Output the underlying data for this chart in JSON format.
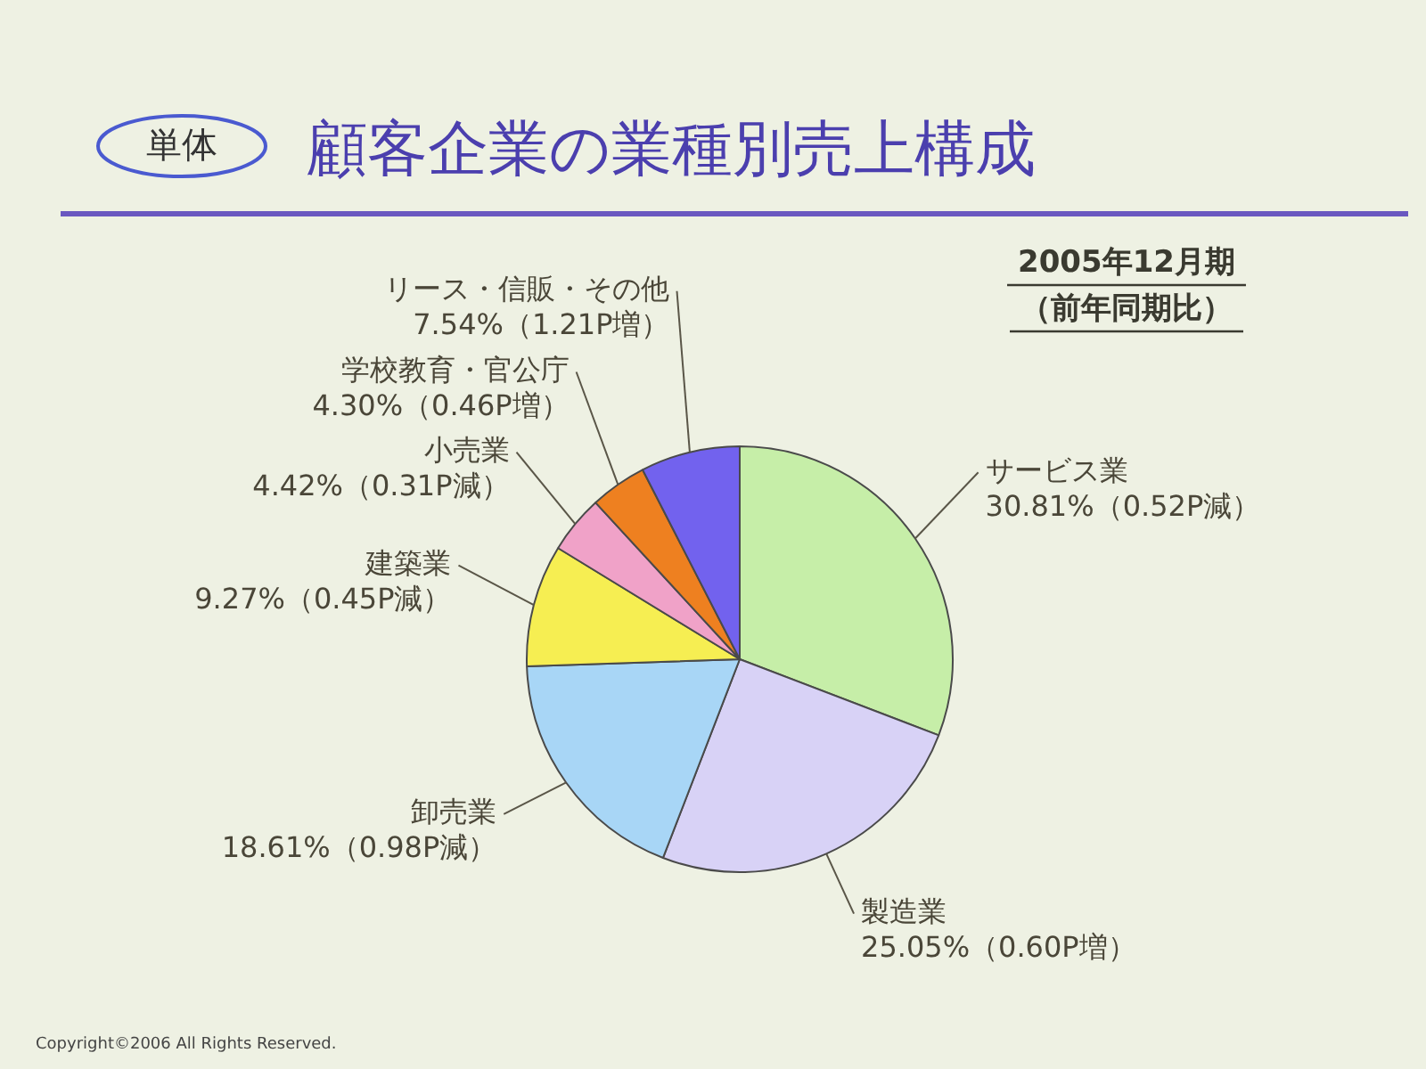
{
  "chart_data": {
    "type": "pie",
    "title": "顧客企業の業種別売上構成",
    "annotations": [
      "単体",
      "2005年12月期",
      "（前年同期比）",
      "Copyright©2006 All Rights Reserved."
    ],
    "categories": [
      "サービス業",
      "製造業",
      "卸売業",
      "建築業",
      "小売業",
      "学校教育・官公庁",
      "リース・信販・その他"
    ],
    "values": [
      30.81,
      25.05,
      18.61,
      9.27,
      4.42,
      4.3,
      7.54
    ],
    "colors": [
      "#c6eea8",
      "#d8d2f6",
      "#a8d6f6",
      "#f6ee52",
      "#f0a2c8",
      "#ee8020",
      "#7262ee"
    ],
    "value_labels": [
      "30.81%（0.52P減）",
      "25.05%（0.60P増）",
      "18.61%（0.98P減）",
      "9.27%（0.45P減）",
      "4.42%（0.31P減）",
      "4.30%（0.46P増）",
      "7.54%（1.21P増）"
    ]
  }
}
